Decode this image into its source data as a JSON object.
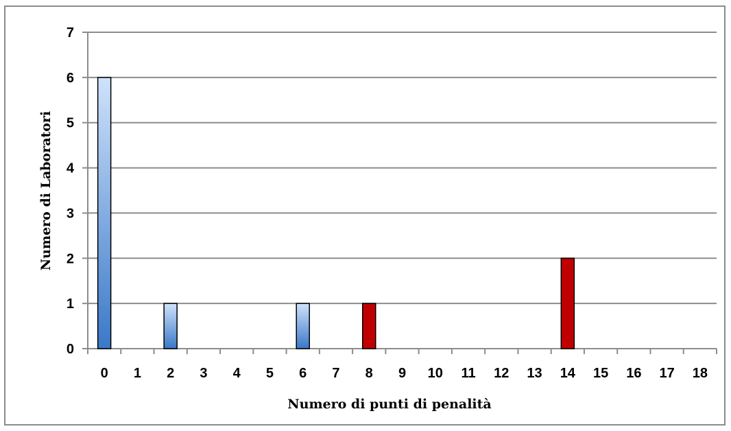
{
  "chart_data": {
    "type": "bar",
    "title": "",
    "xlabel": "Numero di punti di penalità",
    "ylabel": "Numero di Laboratori",
    "categories": [
      "0",
      "1",
      "2",
      "3",
      "4",
      "5",
      "6",
      "7",
      "8",
      "9",
      "10",
      "11",
      "12",
      "13",
      "14",
      "15",
      "16",
      "17",
      "18"
    ],
    "values": [
      6,
      0,
      1,
      0,
      0,
      0,
      1,
      0,
      1,
      0,
      0,
      0,
      0,
      0,
      2,
      0,
      0,
      0,
      0
    ],
    "bar_colors": [
      "blue",
      "blue",
      "blue",
      "blue",
      "blue",
      "blue",
      "blue",
      "blue",
      "red",
      "blue",
      "blue",
      "blue",
      "blue",
      "blue",
      "red",
      "blue",
      "blue",
      "blue",
      "blue"
    ],
    "ylim": [
      0,
      7
    ],
    "yticks": [
      0,
      1,
      2,
      3,
      4,
      5,
      6,
      7
    ],
    "grid": true,
    "legend": "none",
    "colors": {
      "blue_light": "#cfe2fb",
      "blue_dark": "#3a78c8",
      "red": "#c00000",
      "grid": "#8c8c8c",
      "bar_border": "#000000"
    }
  }
}
